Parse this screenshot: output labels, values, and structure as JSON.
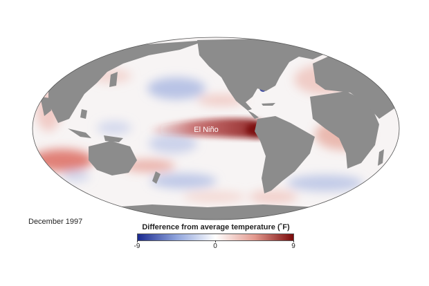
{
  "map": {
    "annotation": "El Niño",
    "date": "December 1997",
    "land_color": "#8c8c8c",
    "ocean_base_color": "#f7f4f4"
  },
  "legend": {
    "title": "Difference from average temperature (˚F)",
    "min_label": "-9",
    "mid_label": "0",
    "max_label": "9",
    "colors": {
      "cold": "#1b2a8f",
      "cool": "#8fa4dc",
      "neutral": "#ffffff",
      "warm": "#e39a8f",
      "hot": "#7a0a0a"
    }
  }
}
